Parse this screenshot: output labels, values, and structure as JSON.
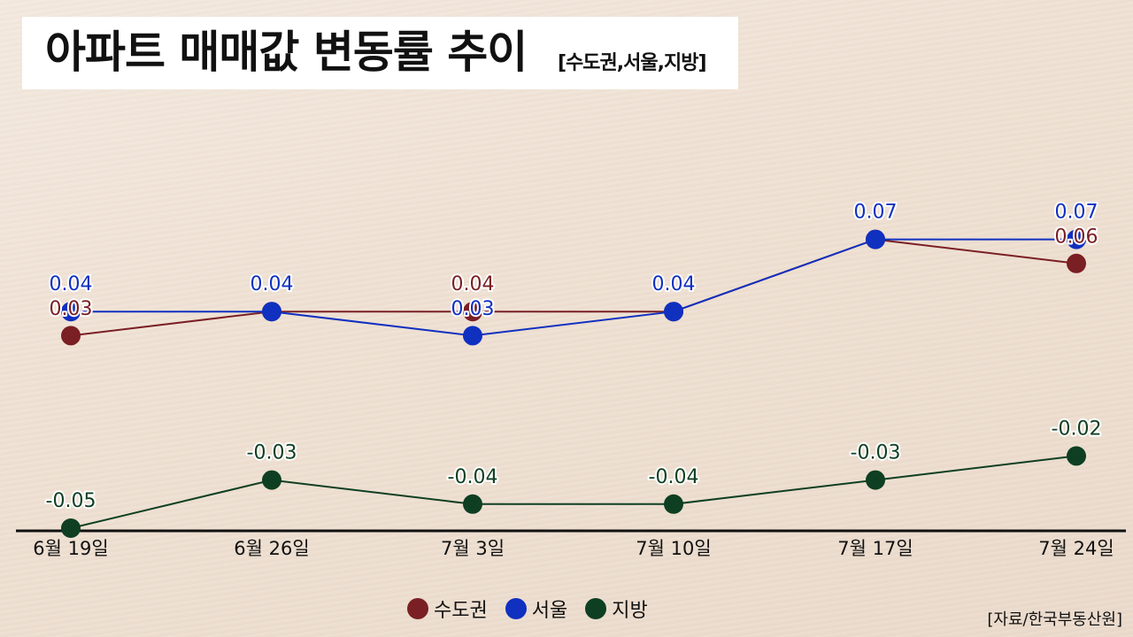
{
  "title": {
    "main": "아파트 매매값 변동률 추이",
    "sub": "[수도권,서울,지방]"
  },
  "legend": [
    {
      "label": "수도권",
      "color": "#7a1f24"
    },
    {
      "label": "서울",
      "color": "#1030c0"
    },
    {
      "label": "지방",
      "color": "#0e3f22"
    }
  ],
  "source": "[자료/한국부동산원]",
  "chart_data": {
    "type": "line",
    "title": "아파트 매매값 변동률 추이 [수도권,서울,지방]",
    "xlabel": "",
    "ylabel": "",
    "categories": [
      "6월 19일",
      "6월 26일",
      "7월 3일",
      "7월 10일",
      "7월 17일",
      "7월 24일"
    ],
    "series": [
      {
        "name": "수도권",
        "color": "#7a1f24",
        "values": [
          0.03,
          0.04,
          0.04,
          0.04,
          0.07,
          0.06
        ]
      },
      {
        "name": "서울",
        "color": "#1030c0",
        "values": [
          0.04,
          0.04,
          0.03,
          0.04,
          0.07,
          0.07
        ]
      },
      {
        "name": "지방",
        "color": "#0e3f22",
        "values": [
          -0.05,
          -0.03,
          -0.04,
          -0.04,
          -0.03,
          -0.02
        ]
      }
    ],
    "grid": false,
    "legend_position": "bottom",
    "data_labels": true
  }
}
